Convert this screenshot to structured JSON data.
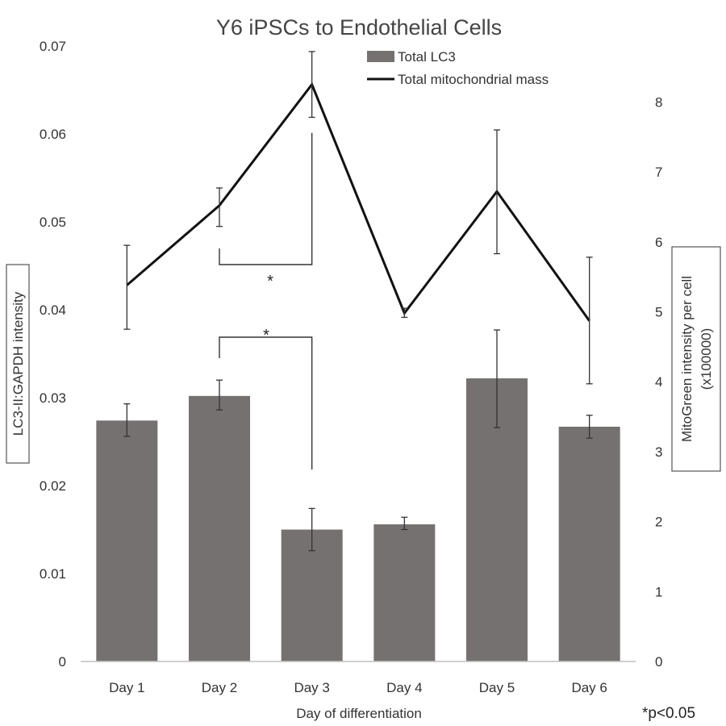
{
  "chart_data": {
    "type": "bar",
    "title": "Y6 iPSCs to Endothelial Cells",
    "xlabel": "Day of differentiation",
    "ylabel": "LC3-II:GAPDH intensity",
    "y2label_line1": "MitoGreen intensity per cell",
    "y2label_line2": "(x100000)",
    "categories": [
      "Day 1",
      "Day 2",
      "Day 3",
      "Day 4",
      "Day 5",
      "Day 6"
    ],
    "ylim": [
      0,
      0.07
    ],
    "y_ticks": [
      "0",
      "0.01",
      "0.02",
      "0.03",
      "0.04",
      "0.05",
      "0.06",
      "0.07"
    ],
    "y2lim": [
      0,
      8.8
    ],
    "y2_ticks": [
      "0",
      "1",
      "2",
      "3",
      "4",
      "5",
      "6",
      "7",
      "8"
    ],
    "series": [
      {
        "name": "Total LC3",
        "kind": "bar",
        "axis": "left",
        "color": "#767171",
        "values": [
          0.0274,
          0.0302,
          0.015,
          0.0156,
          0.0322,
          0.0267
        ],
        "err_low": [
          0.0256,
          0.0286,
          0.0126,
          0.015,
          0.0266,
          0.0254
        ],
        "err_high": [
          0.0293,
          0.032,
          0.0174,
          0.0164,
          0.0377,
          0.028
        ]
      },
      {
        "name": "Total mitochondrial mass",
        "kind": "line",
        "axis": "right",
        "color": "#111111",
        "values": [
          5.38,
          6.52,
          8.25,
          4.98,
          6.72,
          4.87
        ],
        "err_low": [
          4.75,
          6.22,
          7.78,
          4.92,
          5.83,
          3.97
        ],
        "err_high": [
          5.95,
          6.77,
          8.72,
          5.05,
          7.6,
          5.78
        ]
      }
    ],
    "annotations": [
      {
        "text": "*",
        "between": [
          "Day 2",
          "Day 3"
        ],
        "series": "Total mitochondrial mass"
      },
      {
        "text": "*",
        "between": [
          "Day 2",
          "Day 3"
        ],
        "series": "Total LC3"
      }
    ],
    "footnote": "*p<0.05",
    "legend_position": "top-center",
    "grid": false
  }
}
